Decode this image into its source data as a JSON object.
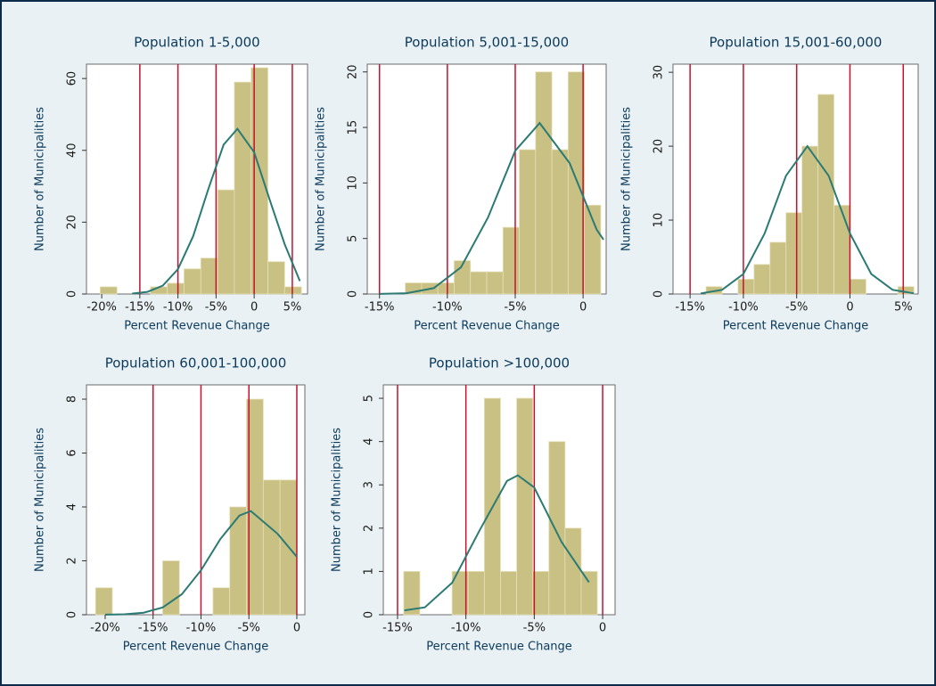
{
  "chart_data": [
    {
      "type": "histogram",
      "title": "Population 1-5,000",
      "xlabel": "Percent Revenue Change",
      "ylabel": "Number of Municipalities",
      "bins": [
        -20.2,
        -18,
        -15.8,
        -13.6,
        -11.4,
        -9.2,
        -7,
        -4.8,
        -2.6,
        -0.4,
        1.8,
        4,
        6.2
      ],
      "counts": [
        2,
        0,
        0,
        2,
        3,
        7,
        10,
        29,
        59,
        63,
        9,
        2
      ],
      "color": "#c9c083",
      "xlim": [
        -22,
        7
      ],
      "ylim": [
        0,
        64
      ],
      "xticks": [
        {
          "value": -20,
          "label": "-20%"
        },
        {
          "value": -15,
          "label": "-15%"
        },
        {
          "value": -10,
          "label": "-10%"
        },
        {
          "value": -5,
          "label": "-5%"
        },
        0,
        {
          "value": 5,
          "label": "5%"
        }
      ],
      "yticks": [
        0,
        20,
        40,
        60
      ],
      "reference_lines": [
        -15,
        -10,
        -5,
        0,
        5
      ],
      "reference_color": "#c8102e",
      "density_curve": {
        "color": "#2b7a73",
        "x": [
          -16,
          -14,
          -12,
          -10,
          -8,
          -6,
          -4,
          -2.2,
          0,
          2,
          4,
          6
        ],
        "values": [
          0.12,
          0.6,
          2.3,
          6.9,
          16.1,
          29.3,
          41.6,
          46,
          39.5,
          26.5,
          13.9,
          3.6
        ]
      }
    },
    {
      "type": "histogram",
      "title": "Population 5,001-15,000",
      "xlabel": "Percent Revenue Change",
      "ylabel": "Number of Municipalities",
      "bins": [
        -13.1,
        -11.9,
        -10.7,
        -9.5,
        -8.3,
        -7.1,
        -5.9,
        -4.7,
        -3.5,
        -2.3,
        -1.1,
        0.1,
        1.3
      ],
      "counts": [
        1,
        1,
        1,
        3,
        2,
        2,
        6,
        13,
        20,
        13,
        20,
        8
      ],
      "color": "#c9c083",
      "xlim": [
        -15.9,
        1.7
      ],
      "ylim": [
        0,
        20.7
      ],
      "xticks": [
        {
          "value": -15,
          "label": "-15%"
        },
        {
          "value": -10,
          "label": "-10%"
        },
        {
          "value": -5,
          "label": "-5%"
        },
        0
      ],
      "yticks": [
        0,
        5,
        10,
        15,
        20
      ],
      "reference_lines": [
        -15,
        -10,
        -5,
        0
      ],
      "reference_color": "#c8102e",
      "density_curve": {
        "color": "#2b7a73",
        "x": [
          -15,
          -13,
          -11,
          -9,
          -7,
          -5,
          -3.2,
          -1,
          1,
          1.5
        ],
        "values": [
          0.01,
          0.07,
          0.53,
          2.4,
          6.9,
          12.9,
          15.4,
          11.8,
          5.8,
          4.9
        ]
      }
    },
    {
      "type": "histogram",
      "title": "Population 15,001-60,000",
      "xlabel": "Percent Revenue Change",
      "ylabel": "Number of Municipalities",
      "bins": [
        -13.5,
        -12,
        -10.5,
        -9,
        -7.5,
        -6,
        -4.5,
        -3,
        -1.5,
        0,
        1.5,
        3,
        4.5,
        6
      ],
      "counts": [
        1,
        0,
        2,
        4,
        7,
        11,
        20,
        27,
        12,
        2,
        0,
        0,
        1
      ],
      "color": "#c9c083",
      "xlim": [
        -16.6,
        6.4
      ],
      "ylim": [
        0,
        31.1
      ],
      "xticks": [
        {
          "value": -15,
          "label": "-15%"
        },
        {
          "value": -10,
          "label": "-10%"
        },
        {
          "value": -5,
          "label": "-5%"
        },
        0,
        {
          "value": 5,
          "label": "5%"
        }
      ],
      "yticks": [
        0,
        10,
        20,
        30
      ],
      "reference_lines": [
        -15,
        -10,
        -5,
        0,
        5
      ],
      "reference_color": "#c8102e",
      "density_curve": {
        "color": "#2b7a73",
        "x": [
          -14,
          -12,
          -10,
          -8,
          -6,
          -4,
          -2,
          0,
          2,
          4,
          6
        ],
        "values": [
          0.08,
          0.57,
          2.7,
          8.2,
          16,
          20,
          16,
          8.2,
          2.7,
          0.57,
          0.08
        ]
      }
    },
    {
      "type": "histogram",
      "title": "Population 60,001-100,000",
      "xlabel": "Percent Revenue Change",
      "ylabel": "Number of Municipalities",
      "bins": [
        -21,
        -19.25,
        -17.5,
        -15.75,
        -14,
        -12.25,
        -10.5,
        -8.75,
        -7,
        -5.25,
        -3.5,
        -1.75,
        0
      ],
      "counts": [
        1,
        0,
        0,
        0,
        2,
        0,
        0,
        1,
        4,
        8,
        5,
        5
      ],
      "color": "#c9c083",
      "xlim": [
        -21.95,
        0.84
      ],
      "ylim": [
        0,
        8.53
      ],
      "xticks": [
        {
          "value": -20,
          "label": "-20%"
        },
        {
          "value": -15,
          "label": "-15%"
        },
        {
          "value": -10,
          "label": "-10%"
        },
        {
          "value": -5,
          "label": "-5%"
        },
        0
      ],
      "yticks": [
        0,
        2,
        4,
        6,
        8
      ],
      "reference_lines": [
        -15,
        -10,
        -5,
        0
      ],
      "reference_color": "#c8102e",
      "density_curve": {
        "color": "#2b7a73",
        "x": [
          -20,
          -18,
          -16,
          -14,
          -12,
          -10,
          -8,
          -6,
          -4.8,
          -2,
          0
        ],
        "values": [
          0.003,
          0.017,
          0.077,
          0.27,
          0.76,
          1.65,
          2.8,
          3.68,
          3.85,
          3,
          2.15
        ]
      }
    },
    {
      "type": "histogram",
      "title": "Population >100,000",
      "xlabel": "Percent Revenue Change",
      "ylabel": "Number of Municipalities",
      "bins": [
        -14.55,
        -13.37,
        -12.19,
        -11.01,
        -9.83,
        -8.65,
        -7.47,
        -6.29,
        -5.11,
        -3.93,
        -2.75,
        -1.57,
        -0.39
      ],
      "counts": [
        1,
        0,
        0,
        1,
        1,
        5,
        1,
        5,
        1,
        4,
        2,
        1
      ],
      "color": "#c9c083",
      "xlim": [
        -16.04,
        0.91
      ],
      "ylim": [
        0,
        5.31
      ],
      "xticks": [
        {
          "value": -15,
          "label": "-15%"
        },
        {
          "value": -10,
          "label": "-10%"
        },
        {
          "value": -5,
          "label": "-5%"
        },
        0
      ],
      "yticks": [
        0,
        1,
        2,
        3,
        4,
        5
      ],
      "reference_lines": [
        -15,
        -10,
        -5,
        0
      ],
      "reference_color": "#c8102e",
      "density_curve": {
        "color": "#2b7a73",
        "x": [
          -14.5,
          -13,
          -11,
          -9,
          -7,
          -6.2,
          -5,
          -3,
          -1
        ],
        "values": [
          0.1,
          0.17,
          0.74,
          1.95,
          3.09,
          3.22,
          2.94,
          1.68,
          0.75
        ]
      }
    }
  ]
}
